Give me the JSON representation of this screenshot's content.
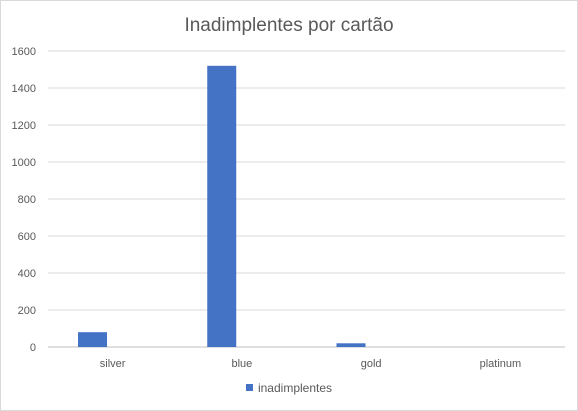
{
  "chart_data": {
    "type": "bar",
    "title": "Inadimplentes por cartão",
    "categories": [
      "silver",
      "blue",
      "gold",
      "platinum"
    ],
    "series": [
      {
        "name": "inadimplentes",
        "values": [
          80,
          1520,
          20,
          0
        ],
        "color": "#4472C4"
      }
    ],
    "ylim": [
      0,
      1600
    ],
    "yticks": [
      0,
      200,
      400,
      600,
      800,
      1000,
      1200,
      1400,
      1600
    ],
    "grid": true,
    "legend_position": "bottom",
    "xlabel": "",
    "ylabel": ""
  }
}
